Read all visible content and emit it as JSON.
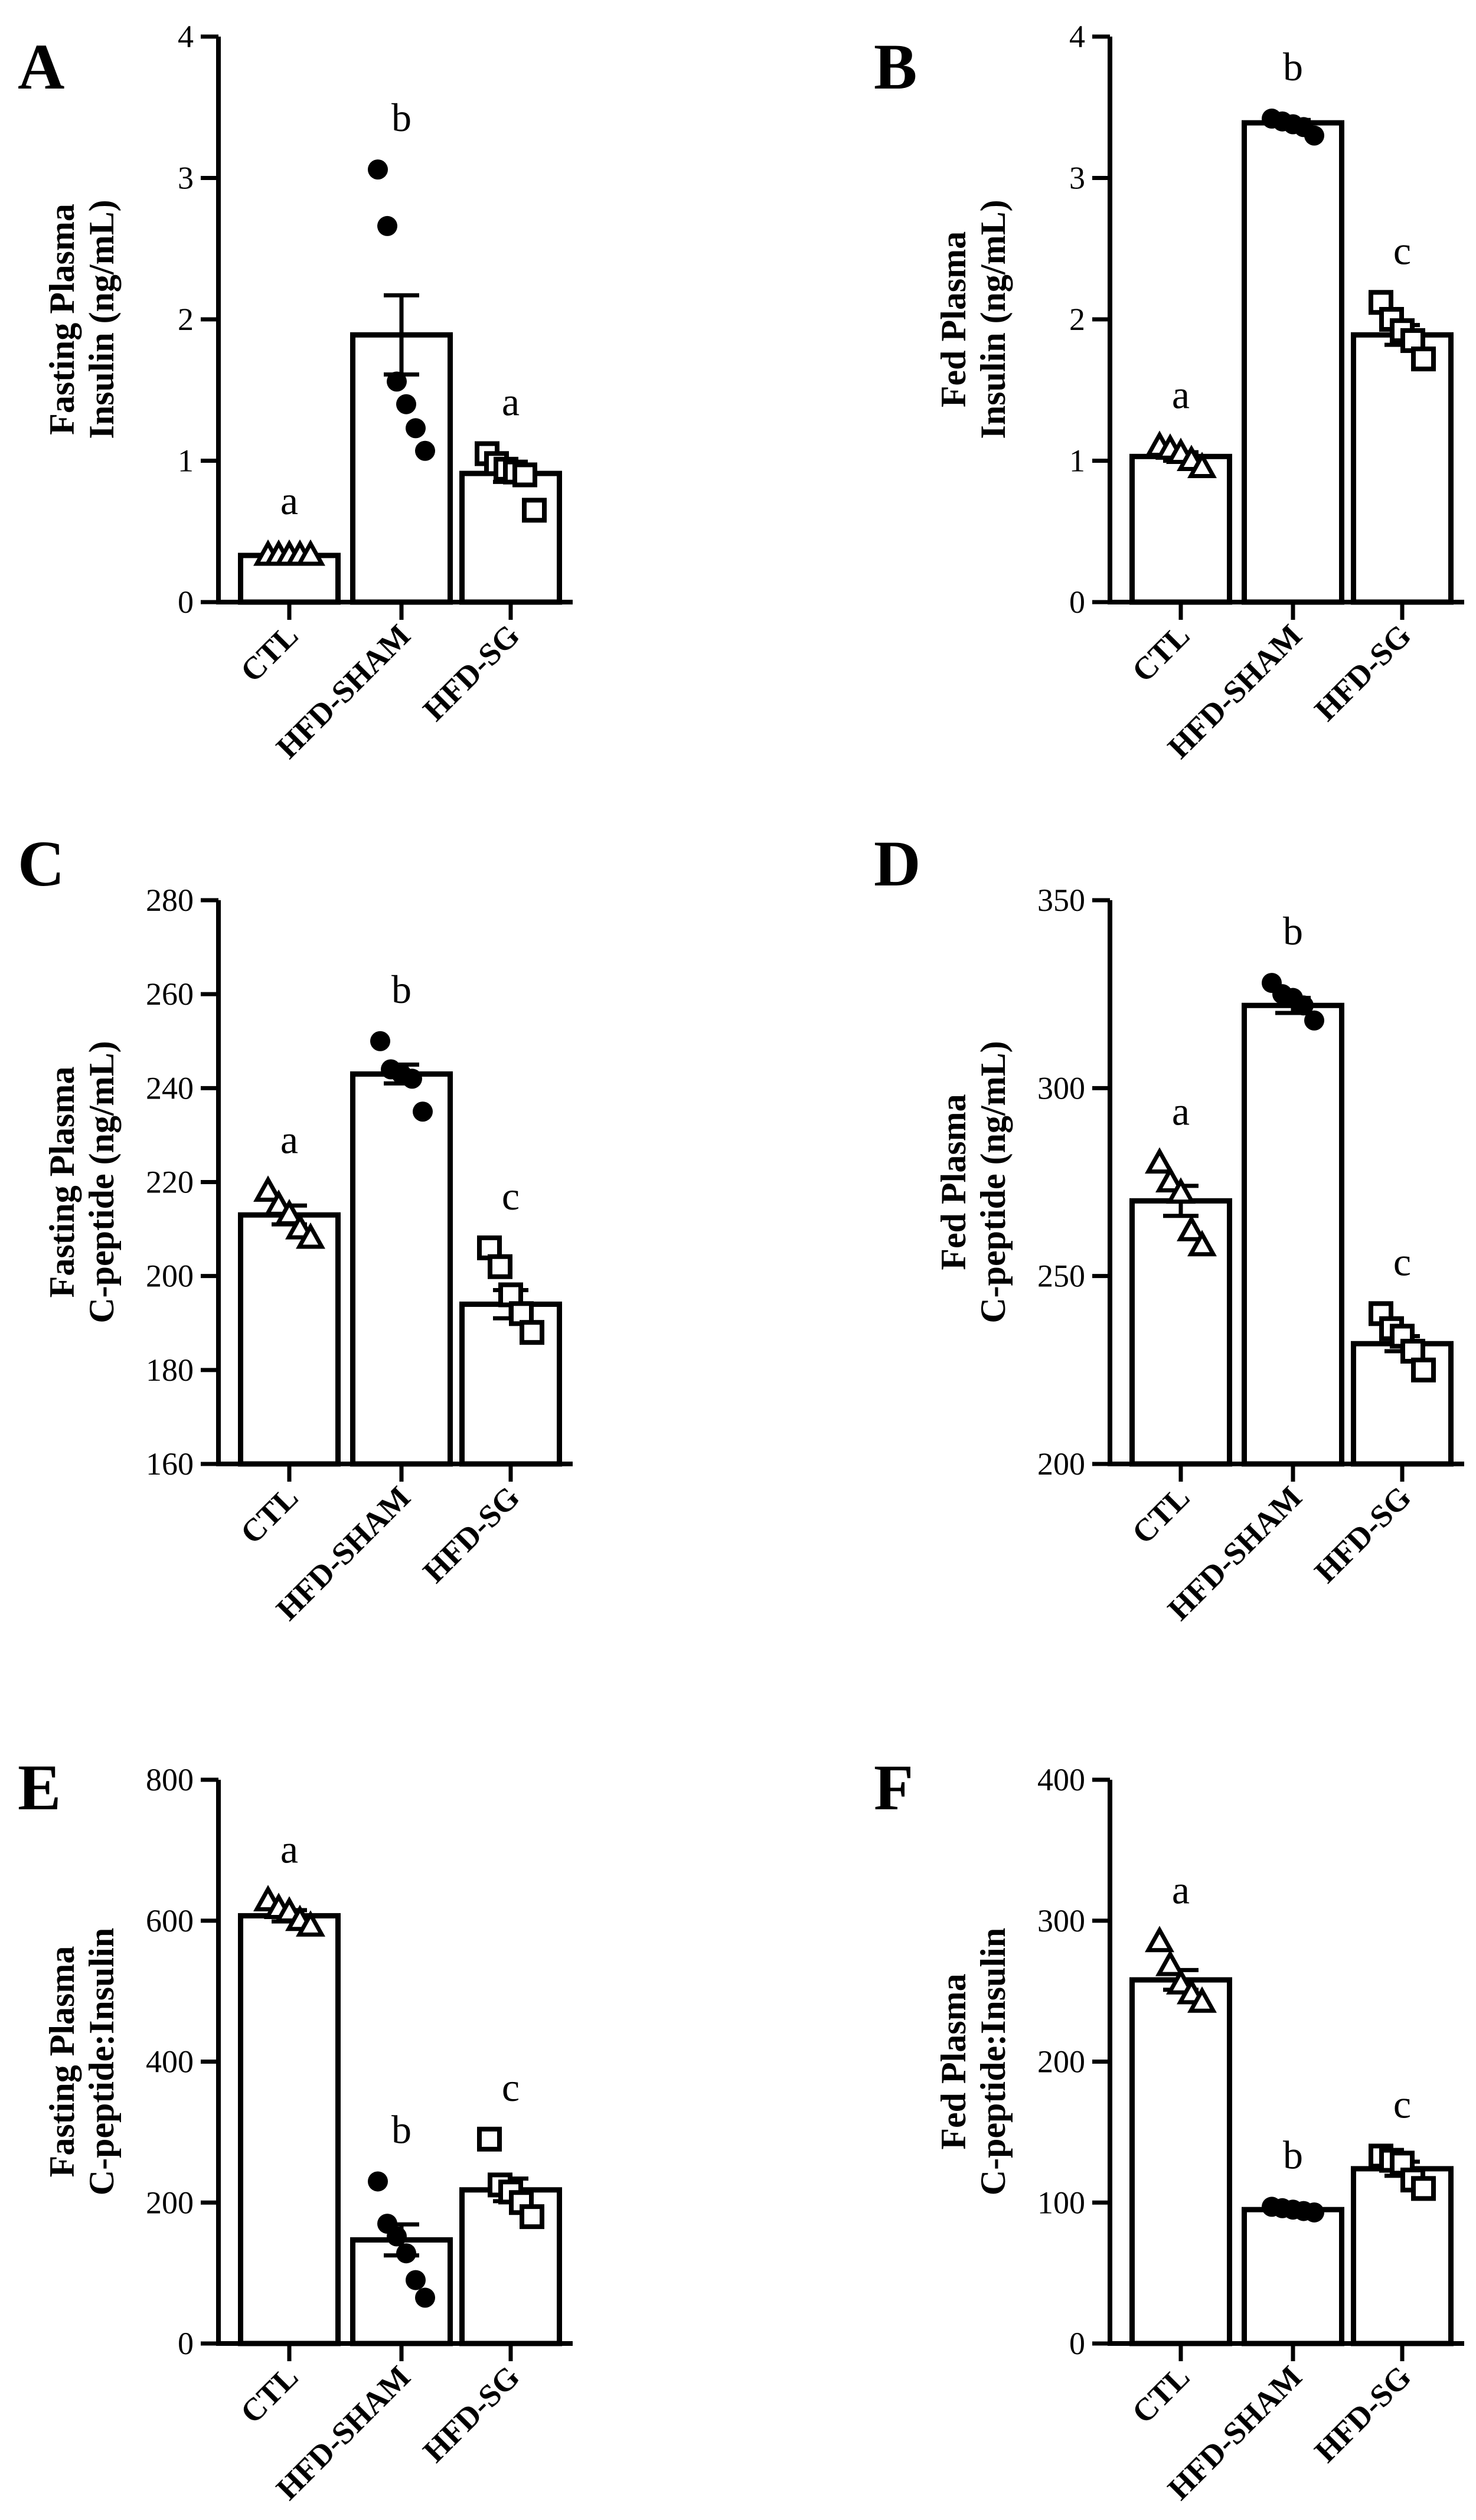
{
  "chart_data": [
    {
      "type": "bar",
      "panel": "A",
      "ylabel_lines": [
        "Fasting Plasma",
        "Insulin (ng/mL)"
      ],
      "ylim": [
        0,
        4
      ],
      "yticks": [
        0,
        1,
        2,
        3,
        4
      ],
      "categories": [
        "CTL",
        "HFD-SHAM",
        "HFD-SG"
      ],
      "values": [
        0.33,
        1.89,
        0.91
      ],
      "sem": [
        0.02,
        0.28,
        0.06
      ],
      "points": [
        [
          0.33,
          0.33,
          0.33,
          0.33,
          0.33
        ],
        [
          3.06,
          2.66,
          1.56,
          1.4,
          1.23,
          1.07
        ],
        [
          1.05,
          0.98,
          0.94,
          0.92,
          0.9,
          0.65
        ]
      ],
      "markers": [
        "triangle",
        "circle",
        "square"
      ],
      "significance": [
        "a",
        "b",
        "a"
      ]
    },
    {
      "type": "bar",
      "panel": "B",
      "ylabel_lines": [
        "Fed Plasma",
        "Insulin (ng/mL)"
      ],
      "ylim": [
        0,
        4
      ],
      "yticks": [
        0,
        1,
        2,
        3,
        4
      ],
      "categories": [
        "CTL",
        "HFD-SHAM",
        "HFD-SG"
      ],
      "values": [
        1.03,
        3.39,
        1.89
      ],
      "sem": [
        0.03,
        0.02,
        0.07
      ],
      "points": [
        [
          1.1,
          1.08,
          1.05,
          1.0,
          0.95
        ],
        [
          3.42,
          3.4,
          3.38,
          3.36,
          3.3
        ],
        [
          2.12,
          2.0,
          1.92,
          1.85,
          1.72
        ]
      ],
      "markers": [
        "triangle",
        "circle",
        "square"
      ],
      "significance": [
        "a",
        "b",
        "c"
      ]
    },
    {
      "type": "bar",
      "panel": "C",
      "ylabel_lines": [
        "Fasting Plasma",
        "C-peptide (ng/mL)"
      ],
      "ylim": [
        160,
        280
      ],
      "yticks": [
        160,
        180,
        200,
        220,
        240,
        260,
        280
      ],
      "categories": [
        "CTL",
        "HFD-SHAM",
        "HFD-SG"
      ],
      "values": [
        213,
        243,
        194
      ],
      "sem": [
        2,
        2,
        3
      ],
      "points": [
        [
          218,
          215,
          213,
          210,
          208
        ],
        [
          250,
          244,
          243,
          242,
          235
        ],
        [
          206,
          202,
          196,
          192,
          188
        ]
      ],
      "markers": [
        "triangle",
        "circle",
        "square"
      ],
      "significance": [
        "a",
        "b",
        "c"
      ]
    },
    {
      "type": "bar",
      "panel": "D",
      "ylabel_lines": [
        "Fed Plasma",
        "C-peptide (ng/mL)"
      ],
      "ylim": [
        200,
        350
      ],
      "yticks": [
        200,
        250,
        300,
        350
      ],
      "categories": [
        "CTL",
        "HFD-SHAM",
        "HFD-SG"
      ],
      "values": [
        270,
        322,
        232
      ],
      "sem": [
        4,
        2,
        2
      ],
      "points": [
        [
          280,
          275,
          272,
          262,
          258
        ],
        [
          328,
          325,
          324,
          322,
          318
        ],
        [
          240,
          236,
          234,
          230,
          225
        ]
      ],
      "markers": [
        "triangle",
        "circle",
        "square"
      ],
      "significance": [
        "a",
        "b",
        "c"
      ]
    },
    {
      "type": "bar",
      "panel": "E",
      "ylabel_lines": [
        "Fasting Plasma",
        "C-peptide:Insulin"
      ],
      "ylim": [
        0,
        800
      ],
      "yticks": [
        0,
        200,
        400,
        600,
        800
      ],
      "categories": [
        "CTL",
        "HFD-SHAM",
        "HFD-SG"
      ],
      "values": [
        607,
        147,
        218
      ],
      "sem": [
        8,
        22,
        16
      ],
      "points": [
        [
          628,
          617,
          612,
          600,
          592
        ],
        [
          230,
          170,
          152,
          128,
          90,
          65
        ],
        [
          290,
          225,
          215,
          200,
          180
        ]
      ],
      "markers": [
        "triangle",
        "circle",
        "square"
      ],
      "significance": [
        "a",
        "b",
        "c"
      ]
    },
    {
      "type": "bar",
      "panel": "F",
      "ylabel_lines": [
        "Fed Plasma",
        "C-peptide:Insulin"
      ],
      "ylim": [
        0,
        400
      ],
      "yticks": [
        0,
        100,
        200,
        300,
        400
      ],
      "categories": [
        "CTL",
        "HFD-SHAM",
        "HFD-SG"
      ],
      "values": [
        258,
        95,
        124
      ],
      "sem": [
        7,
        1,
        5
      ],
      "points": [
        [
          285,
          268,
          255,
          248,
          242
        ],
        [
          97,
          96,
          95,
          94,
          93
        ],
        [
          133,
          130,
          128,
          116,
          110
        ]
      ],
      "markers": [
        "triangle",
        "circle",
        "square"
      ],
      "significance": [
        "a",
        "b",
        "c"
      ]
    }
  ]
}
